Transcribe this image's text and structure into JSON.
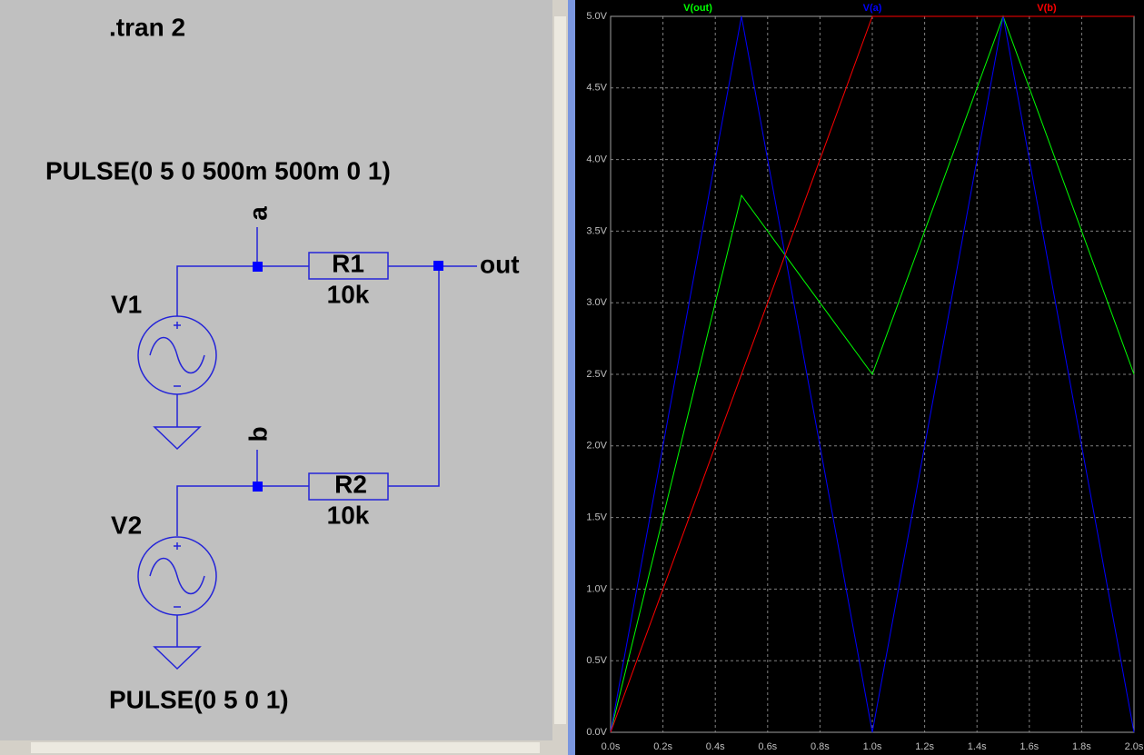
{
  "schematic": {
    "directive": ".tran 2",
    "v1_source": "PULSE(0 5 0 500m 500m 0 1)",
    "v1_name": "V1",
    "node_a": "a",
    "r1_name": "R1",
    "r1_value": "10k",
    "node_out": "out",
    "v2_name": "V2",
    "node_b": "b",
    "r2_name": "R2",
    "r2_value": "10k",
    "v2_source": "PULSE(0 5 0 1)"
  },
  "chart_data": {
    "type": "line",
    "series": [
      {
        "name": "V(out)",
        "color": "#00ff00",
        "x": [
          0,
          0.5,
          1,
          1.5,
          2
        ],
        "values": [
          0,
          3.75,
          2.5,
          5,
          2.5
        ]
      },
      {
        "name": "V(a)",
        "color": "#0000ff",
        "x": [
          0,
          0.5,
          1,
          1.5,
          2
        ],
        "values": [
          0,
          5,
          0,
          5,
          0
        ]
      },
      {
        "name": "V(b)",
        "color": "#ff0000",
        "x": [
          0,
          1,
          2
        ],
        "values": [
          0,
          5,
          5
        ]
      }
    ],
    "xlim": [
      0,
      2
    ],
    "xticks": [
      {
        "value": 0,
        "label": "0.0s"
      },
      {
        "value": 0.2,
        "label": "0.2s"
      },
      {
        "value": 0.4,
        "label": "0.4s"
      },
      {
        "value": 0.6,
        "label": "0.6s"
      },
      {
        "value": 0.8,
        "label": "0.8s"
      },
      {
        "value": 1,
        "label": "1.0s"
      },
      {
        "value": 1.2,
        "label": "1.2s"
      },
      {
        "value": 1.4,
        "label": "1.4s"
      },
      {
        "value": 1.6,
        "label": "1.6s"
      },
      {
        "value": 1.8,
        "label": "1.8s"
      },
      {
        "value": 2,
        "label": "2.0s"
      }
    ],
    "ylim": [
      0,
      5
    ],
    "yticks": [
      {
        "value": 0,
        "label": "0.0V"
      },
      {
        "value": 0.5,
        "label": "0.5V"
      },
      {
        "value": 1,
        "label": "1.0V"
      },
      {
        "value": 1.5,
        "label": "1.5V"
      },
      {
        "value": 2,
        "label": "2.0V"
      },
      {
        "value": 2.5,
        "label": "2.5V"
      },
      {
        "value": 3,
        "label": "3.0V"
      },
      {
        "value": 3.5,
        "label": "3.5V"
      },
      {
        "value": 4,
        "label": "4.0V"
      },
      {
        "value": 4.5,
        "label": "4.5V"
      },
      {
        "value": 5,
        "label": "5.0V"
      }
    ],
    "grid": true
  }
}
